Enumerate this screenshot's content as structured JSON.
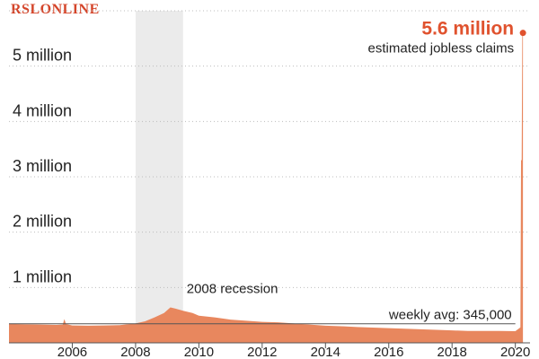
{
  "brand": "RSLONLINE",
  "chart_data": {
    "type": "area",
    "title": "",
    "xlabel": "",
    "ylabel": "",
    "ylim": [
      0,
      6000000
    ],
    "xlim": [
      2004,
      2020.35
    ],
    "y_tick_labels": [
      "1 million",
      "2 million",
      "3 million",
      "4 million",
      "5 million"
    ],
    "y_tick_values": [
      1000000,
      2000000,
      3000000,
      4000000,
      5000000
    ],
    "x_tick_labels": [
      "2006",
      "2008",
      "2010",
      "2012",
      "2014",
      "2016",
      "2018",
      "2020"
    ],
    "x_tick_values": [
      2006,
      2008,
      2010,
      2012,
      2014,
      2016,
      2018,
      2020
    ],
    "grid": "horizontal dotted",
    "colors": {
      "series": "#e8875e",
      "highlight": "#e0522e",
      "recession": "#ebebeb",
      "avg_line": "#555555"
    },
    "recession": {
      "label": "2008 recession",
      "start": 2008.0,
      "end": 2009.5
    },
    "average": {
      "label": "weekly avg: 345,000",
      "value": 345000
    },
    "callout": {
      "value_label": "5.6 million",
      "sub_label": "estimated jobless claims",
      "x": 2020.24,
      "y": 5600000
    },
    "series": [
      {
        "x": [
          2004.0,
          2004.5,
          2005.0,
          2005.5,
          2005.7,
          2005.75,
          2005.8,
          2006.0,
          2006.5,
          2007.0,
          2007.5,
          2008.0,
          2008.3,
          2008.6,
          2008.9,
          2009.1,
          2009.25,
          2009.5,
          2009.8,
          2010.0,
          2010.5,
          2011.0,
          2011.5,
          2012.0,
          2012.5,
          2013.0,
          2013.5,
          2014.0,
          2014.5,
          2015.0,
          2015.5,
          2016.0,
          2016.5,
          2017.0,
          2017.5,
          2018.0,
          2018.5,
          2019.0,
          2019.5,
          2020.0,
          2020.16,
          2020.18,
          2020.2,
          2020.22,
          2020.24
        ],
        "values": [
          345000,
          335000,
          330000,
          325000,
          330000,
          430000,
          340000,
          315000,
          310000,
          315000,
          320000,
          350000,
          390000,
          460000,
          540000,
          640000,
          620000,
          580000,
          540000,
          490000,
          460000,
          420000,
          400000,
          380000,
          370000,
          350000,
          330000,
          310000,
          300000,
          285000,
          275000,
          265000,
          255000,
          245000,
          235000,
          225000,
          215000,
          215000,
          215000,
          210000,
          280000,
          3300000,
          3300000,
          5600000,
          5600000
        ]
      }
    ]
  }
}
